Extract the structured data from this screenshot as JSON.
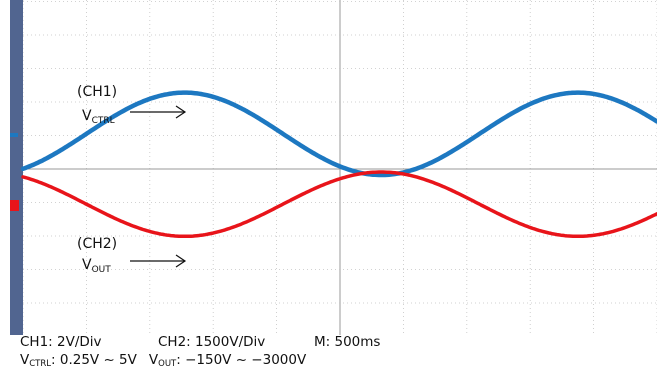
{
  "chart_data": {
    "type": "line",
    "title": "",
    "grid": true,
    "x_unit": "ms",
    "timebase_ms_per_div": 500,
    "divisions": {
      "x": 10,
      "y": 8
    },
    "series": [
      {
        "name": "CH1",
        "color": "#1d78c1",
        "units_per_div": 2,
        "offset_div": 1.05,
        "period_div": 6.2,
        "phase_div": 2.55,
        "amp_div": 1.23,
        "annotation": {
          "channel": "(CH1)",
          "symbol": "V",
          "sub": "CTRL"
        }
      },
      {
        "name": "CH2",
        "color": "#e8141a",
        "units_per_div": 1500,
        "offset_div": -1.05,
        "period_div": 6.2,
        "phase_div": 2.55,
        "amp_div": -0.96,
        "annotation": {
          "channel": "(CH2)",
          "symbol": "V",
          "sub": "OUT"
        }
      }
    ]
  },
  "caption": {
    "ch1": "CH1: 2V/Div",
    "ch2": "CH2: 1500V/Div",
    "time": "M: 500ms",
    "vctrl_symbol": "V",
    "vctrl_sub": "CTRL",
    "vctrl_range": ": 0.25V ~ 5V",
    "vout_symbol": "V",
    "vout_sub": "OUT",
    "vout_range": ": −150V ~ −3000V"
  }
}
